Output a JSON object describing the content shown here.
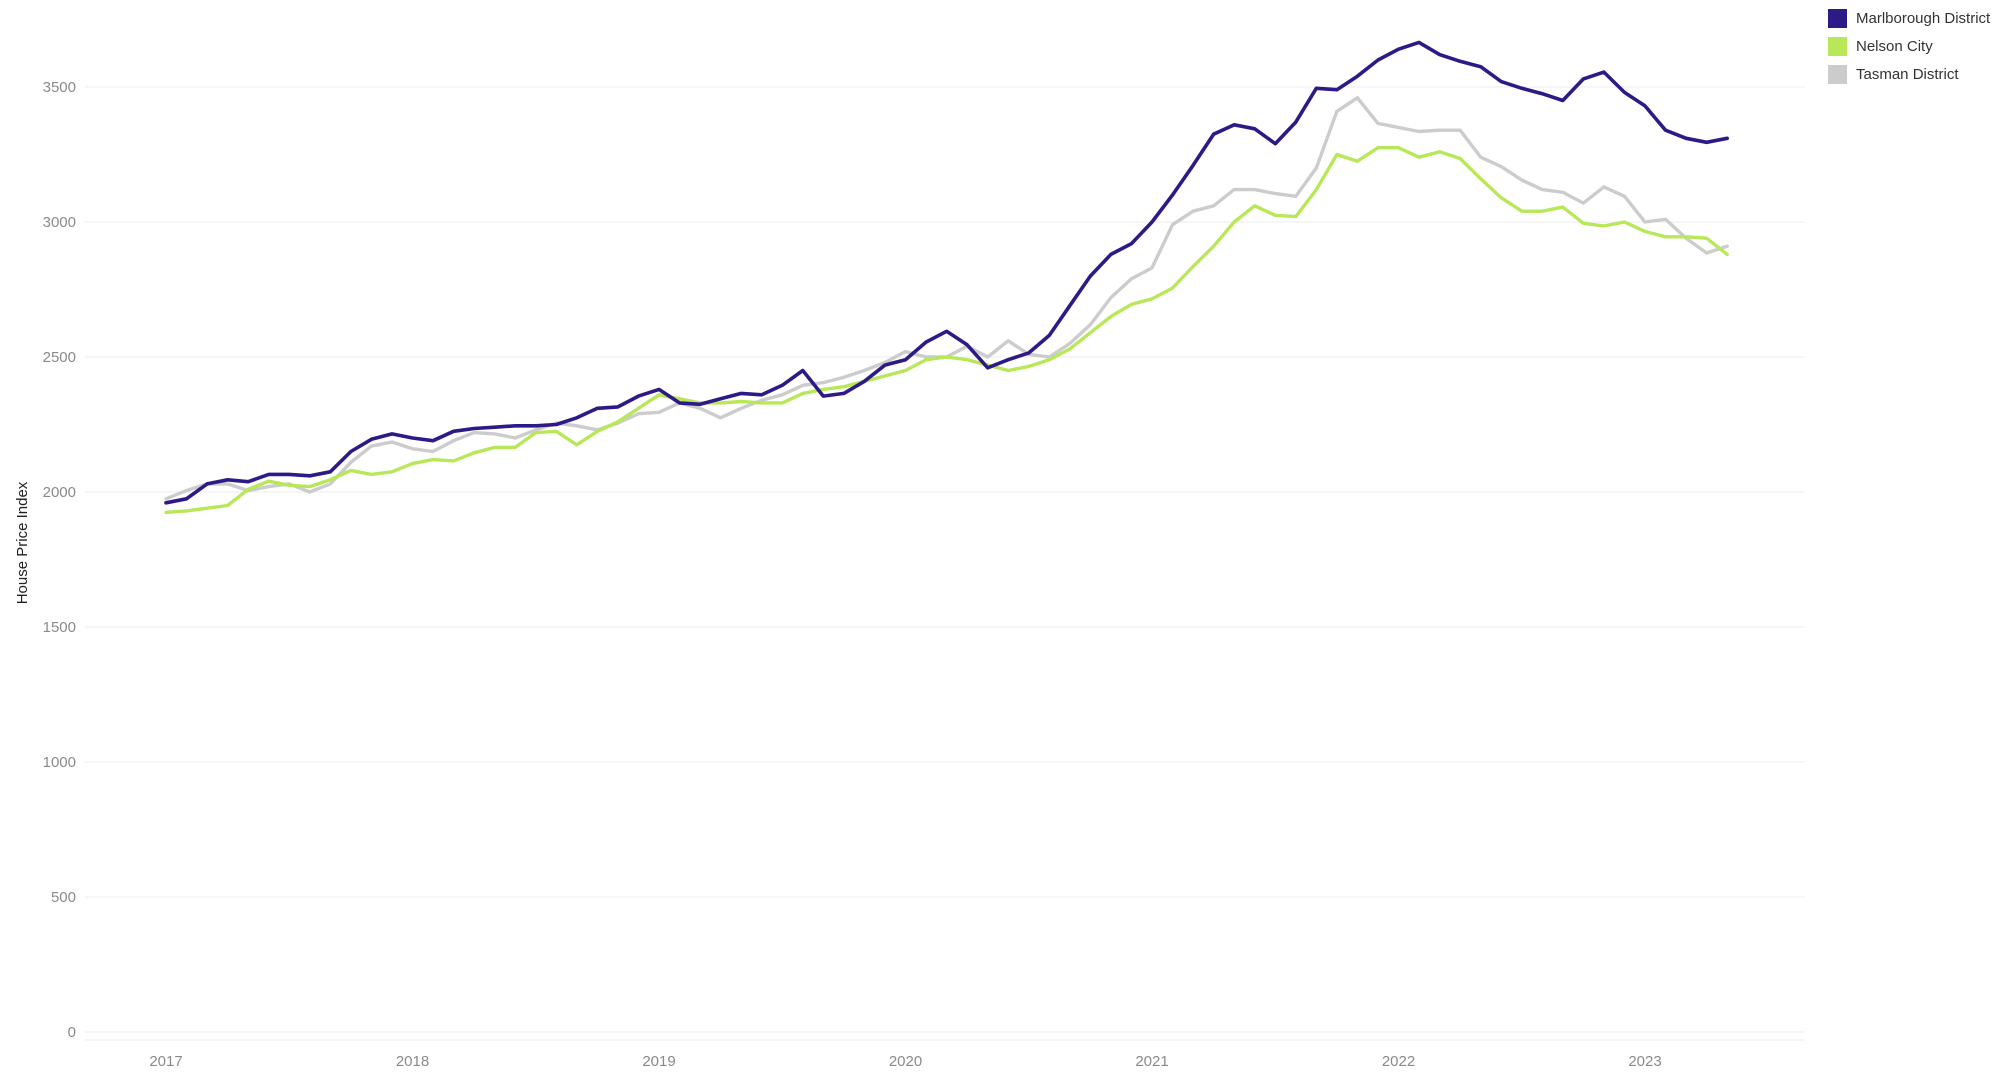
{
  "chart_data": {
    "type": "line",
    "title": "",
    "xlabel": "",
    "ylabel": "House Price Index",
    "ylim": [
      0,
      3800
    ],
    "yticks": [
      0,
      500,
      1000,
      1500,
      2000,
      2500,
      3000,
      3500
    ],
    "xtick_labels": [
      "2017",
      "2018",
      "2019",
      "2020",
      "2021",
      "2022",
      "2023"
    ],
    "x_start": "2017-01",
    "grid": "horizontal",
    "legend_position": "top-right",
    "series": [
      {
        "name": "Marlborough District",
        "color": "#2e1a87",
        "values": [
          1960,
          1975,
          2030,
          2045,
          2038,
          2065,
          2065,
          2060,
          2075,
          2150,
          2195,
          2215,
          2200,
          2190,
          2225,
          2235,
          2240,
          2245,
          2245,
          2250,
          2275,
          2310,
          2315,
          2355,
          2380,
          2330,
          2325,
          2345,
          2365,
          2360,
          2395,
          2450,
          2355,
          2365,
          2410,
          2470,
          2490,
          2555,
          2595,
          2545,
          2460,
          2490,
          2515,
          2580,
          2690,
          2800,
          2880,
          2920,
          3000,
          3100,
          3210,
          3325,
          3360,
          3345,
          3290,
          3370,
          3495,
          3490,
          3540,
          3600,
          3640,
          3665,
          3620,
          3595,
          3575,
          3520,
          3495,
          3475,
          3450,
          3530,
          3555,
          3480,
          3430,
          3340,
          3310,
          3295,
          3310
        ]
      },
      {
        "name": "Nelson City",
        "color": "#b8e858",
        "values": [
          1925,
          1930,
          1940,
          1950,
          2010,
          2040,
          2025,
          2020,
          2045,
          2080,
          2065,
          2075,
          2105,
          2120,
          2115,
          2145,
          2165,
          2165,
          2220,
          2225,
          2175,
          2225,
          2260,
          2310,
          2360,
          2345,
          2330,
          2330,
          2335,
          2330,
          2330,
          2365,
          2380,
          2390,
          2410,
          2430,
          2450,
          2490,
          2500,
          2490,
          2470,
          2450,
          2465,
          2490,
          2530,
          2590,
          2650,
          2695,
          2715,
          2755,
          2835,
          2910,
          3000,
          3060,
          3025,
          3020,
          3120,
          3250,
          3225,
          3275,
          3275,
          3240,
          3260,
          3235,
          3160,
          3090,
          3040,
          3040,
          3055,
          2995,
          2985,
          3000,
          2965,
          2945,
          2945,
          2940,
          2880
        ]
      },
      {
        "name": "Tasman District",
        "color": "#cccccc",
        "values": [
          1975,
          2005,
          2030,
          2030,
          2005,
          2020,
          2030,
          2000,
          2030,
          2110,
          2170,
          2185,
          2160,
          2150,
          2190,
          2220,
          2215,
          2200,
          2230,
          2255,
          2245,
          2230,
          2255,
          2290,
          2295,
          2330,
          2310,
          2275,
          2310,
          2340,
          2360,
          2395,
          2405,
          2425,
          2450,
          2480,
          2520,
          2500,
          2500,
          2540,
          2500,
          2560,
          2510,
          2500,
          2550,
          2620,
          2720,
          2790,
          2830,
          2990,
          3040,
          3060,
          3120,
          3120,
          3105,
          3095,
          3200,
          3410,
          3460,
          3365,
          3350,
          3335,
          3340,
          3340,
          3240,
          3205,
          3155,
          3120,
          3110,
          3070,
          3130,
          3095,
          3000,
          3010,
          2940,
          2885,
          2910
        ]
      }
    ]
  }
}
